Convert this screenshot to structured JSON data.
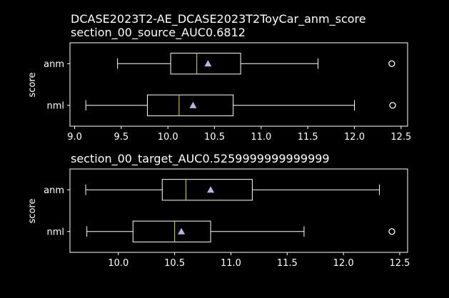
{
  "figure": {
    "suptitle": "DCASE2023T2-AE_DCASE2023T2ToyCar_anm_score",
    "background": "#000000",
    "foreground": "#ffffff",
    "median_color": "#e6e600",
    "mean_color": "#b9b4e6"
  },
  "chart_data": [
    {
      "type": "box",
      "orientation": "horizontal",
      "title": "section_00_source_AUC0.6812",
      "xlabel": "",
      "ylabel": "score",
      "xlim": [
        8.95,
        12.57
      ],
      "xticks": [
        9.0,
        9.5,
        10.0,
        10.5,
        11.0,
        11.5,
        12.0,
        12.5
      ],
      "xtick_labels": [
        "9.0",
        "9.5",
        "10.0",
        "10.5",
        "11.0",
        "11.5",
        "12.0",
        "12.5"
      ],
      "categories": [
        "anm",
        "nml"
      ],
      "boxes": [
        {
          "name": "anm",
          "whisker_low": 9.46,
          "q1": 10.03,
          "median": 10.31,
          "q3": 10.78,
          "whisker_high": 11.61,
          "mean": 10.43,
          "outliers": [
            12.4
          ]
        },
        {
          "name": "nml",
          "whisker_low": 9.12,
          "q1": 9.78,
          "median": 10.12,
          "q3": 10.7,
          "whisker_high": 12.0,
          "mean": 10.27,
          "outliers": [
            12.41
          ]
        }
      ]
    },
    {
      "type": "box",
      "orientation": "horizontal",
      "title": "section_00_target_AUC0.5259999999999999",
      "xlabel": "",
      "ylabel": "score",
      "xlim": [
        9.57,
        12.57
      ],
      "xticks": [
        10.0,
        10.5,
        11.0,
        11.5,
        12.0,
        12.5
      ],
      "xtick_labels": [
        "10.0",
        "10.5",
        "11.0",
        "11.5",
        "12.0",
        "12.5"
      ],
      "categories": [
        "anm",
        "nml"
      ],
      "boxes": [
        {
          "name": "anm",
          "whisker_low": 9.71,
          "q1": 10.39,
          "median": 10.6,
          "q3": 11.19,
          "whisker_high": 12.32,
          "mean": 10.82,
          "outliers": []
        },
        {
          "name": "nml",
          "whisker_low": 9.72,
          "q1": 10.13,
          "median": 10.5,
          "q3": 10.82,
          "whisker_high": 11.65,
          "mean": 10.56,
          "outliers": [
            12.43
          ]
        }
      ]
    }
  ]
}
